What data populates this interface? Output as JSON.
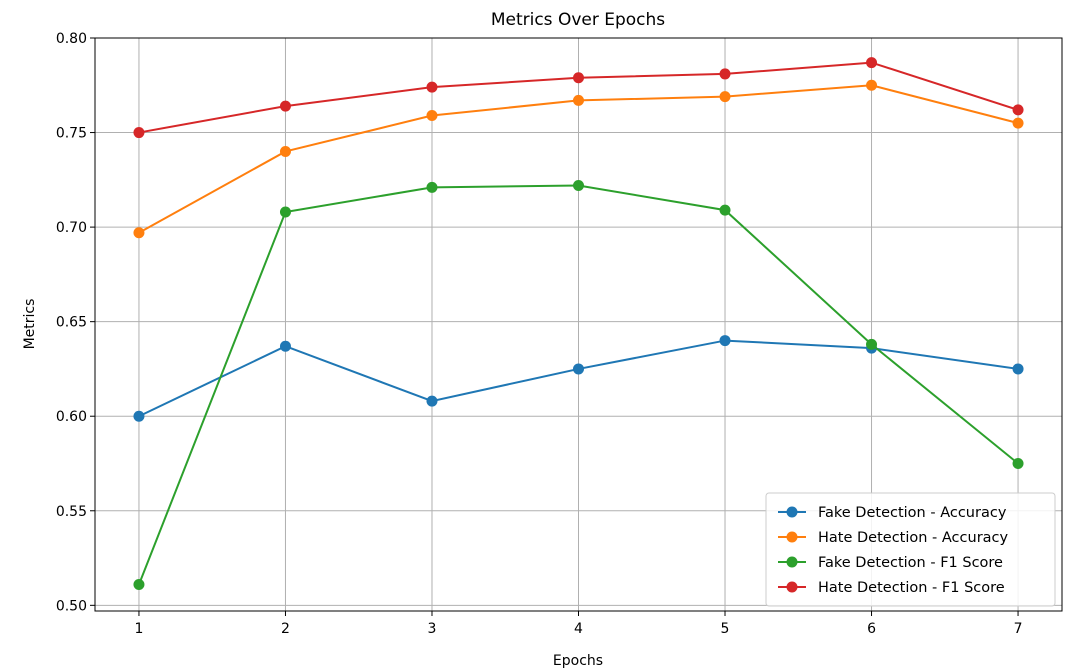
{
  "chart_data": {
    "type": "line",
    "title": "Metrics Over Epochs",
    "xlabel": "Epochs",
    "ylabel": "Metrics",
    "x": [
      1,
      2,
      3,
      4,
      5,
      6,
      7
    ],
    "x_ticks": [
      "1",
      "2",
      "3",
      "4",
      "5",
      "6",
      "7"
    ],
    "xlim": [
      0.7,
      7.3
    ],
    "ylim": [
      0.497,
      0.8
    ],
    "y_ticks": [
      "0.50",
      "0.55",
      "0.60",
      "0.65",
      "0.70",
      "0.75",
      "0.80"
    ],
    "grid": true,
    "legend_position": "lower-right",
    "series": [
      {
        "name": "Fake Detection - Accuracy",
        "color": "#1f77b4",
        "marker": "circle",
        "values": [
          0.6,
          0.637,
          0.608,
          0.625,
          0.64,
          0.636,
          0.625
        ]
      },
      {
        "name": "Hate Detection - Accuracy",
        "color": "#ff7f0e",
        "marker": "circle",
        "values": [
          0.697,
          0.74,
          0.759,
          0.767,
          0.769,
          0.775,
          0.755
        ]
      },
      {
        "name": "Fake Detection - F1 Score",
        "color": "#2ca02c",
        "marker": "circle",
        "values": [
          0.511,
          0.708,
          0.721,
          0.722,
          0.709,
          0.638,
          0.575
        ]
      },
      {
        "name": "Hate Detection - F1 Score",
        "color": "#d62728",
        "marker": "circle",
        "values": [
          0.75,
          0.764,
          0.774,
          0.779,
          0.781,
          0.787,
          0.762
        ]
      }
    ]
  }
}
